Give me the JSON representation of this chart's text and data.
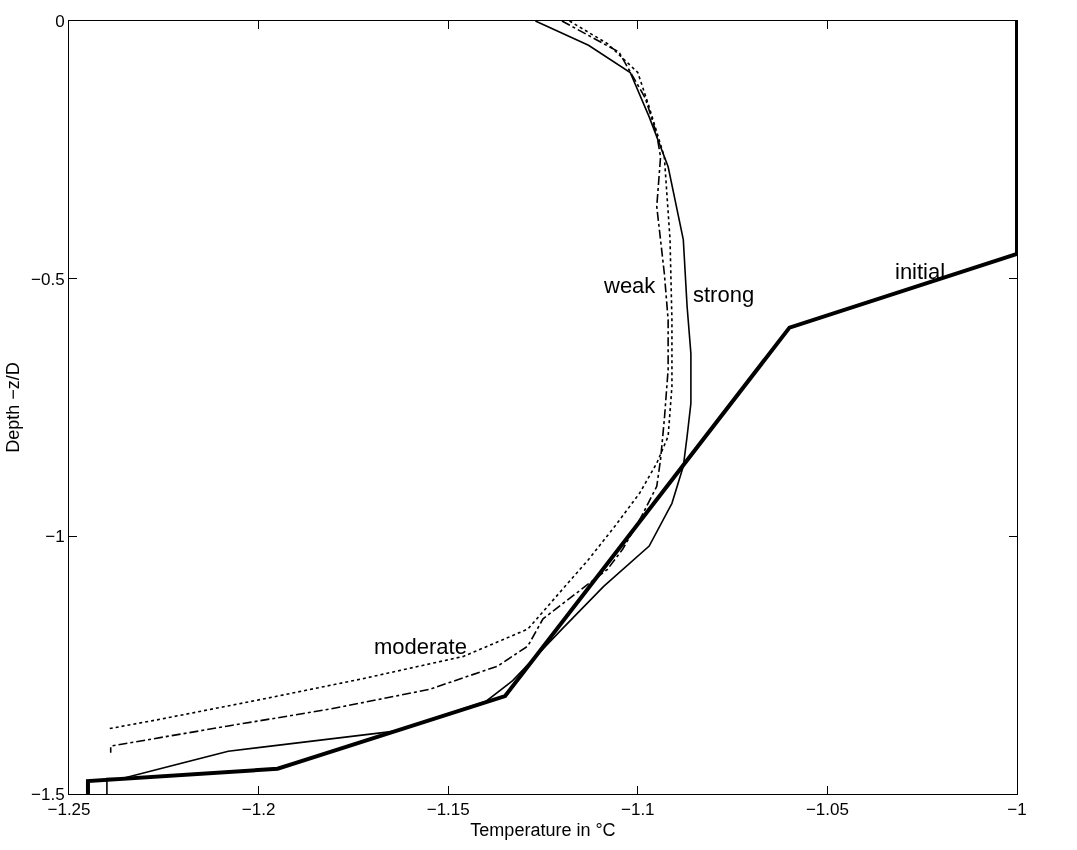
{
  "chart_data": {
    "type": "line",
    "xlabel": "Temperature in °C",
    "ylabel": "Depth −z/D",
    "xlim": [
      -1.25,
      -1
    ],
    "xticks": [
      -1.25,
      -1.2,
      -1.15,
      -1.1,
      -1.05,
      -1
    ],
    "ylim": [
      -1.5,
      0
    ],
    "yticks": [
      -1.5,
      -1,
      -0.5,
      0
    ],
    "grid": false,
    "legend": false,
    "marker": "none",
    "series": [
      {
        "name": "initial",
        "color": "#000000",
        "line_style": "solid",
        "x": [
          -1,
          -1,
          -1.06,
          -1.135,
          -1.195,
          -1.245,
          -1.245
        ],
        "values": [
          0,
          -0.452,
          -0.595,
          -1.31,
          -1.451,
          -1.475,
          -1.5
        ]
      },
      {
        "name": "strong",
        "color": "#000000",
        "line_style": "solid",
        "x": [
          -1.127,
          -1.113,
          -1.102,
          -1.097,
          -1.092,
          -1.088,
          -1.087,
          -1.086,
          -1.086,
          -1.087,
          -1.088,
          -1.091,
          -1.097,
          -1.109,
          -1.12,
          -1.133,
          -1.14,
          -1.164,
          -1.208,
          -1.226,
          -1.236,
          -1.24,
          -1.24
        ],
        "values": [
          0,
          -0.047,
          -0.1,
          -0.186,
          -0.283,
          -0.424,
          -0.554,
          -0.645,
          -0.742,
          -0.806,
          -0.864,
          -0.936,
          -1.019,
          -1.097,
          -1.18,
          -1.28,
          -1.32,
          -1.378,
          -1.417,
          -1.451,
          -1.47,
          -1.47,
          -1.5
        ]
      },
      {
        "name": "weak",
        "color": "#000000",
        "line_style": "dashed",
        "x": [
          -1.12,
          -1.105,
          -1.098,
          -1.095,
          -1.094,
          -1.095,
          -1.093,
          -1.092,
          -1.092,
          -1.093,
          -1.094,
          -1.095,
          -1.099,
          -1.104,
          -1.108,
          -1.125,
          -1.129,
          -1.137,
          -1.155,
          -1.181,
          -1.208,
          -1.239,
          -1.239
        ],
        "values": [
          0,
          -0.06,
          -0.15,
          -0.22,
          -0.264,
          -0.36,
          -0.49,
          -0.58,
          -0.676,
          -0.773,
          -0.851,
          -0.903,
          -0.961,
          -1.025,
          -1.064,
          -1.16,
          -1.213,
          -1.252,
          -1.297,
          -1.335,
          -1.368,
          -1.407,
          -1.42
        ]
      },
      {
        "name": "moderate",
        "color": "#000000",
        "line_style": "dotted",
        "x": [
          -1.118,
          -1.108,
          -1.1,
          -1.097,
          -1.093,
          -1.0915,
          -1.091,
          -1.091,
          -1.092,
          -1.095,
          -1.0995,
          -1.106,
          -1.113,
          -1.129,
          -1.146,
          -1.173,
          -1.199,
          -1.226,
          -1.24
        ],
        "values": [
          0,
          -0.044,
          -0.1,
          -0.167,
          -0.264,
          -0.424,
          -0.58,
          -0.709,
          -0.806,
          -0.858,
          -0.916,
          -0.98,
          -1.045,
          -1.18,
          -1.233,
          -1.277,
          -1.316,
          -1.355,
          -1.374
        ]
      }
    ]
  }
}
